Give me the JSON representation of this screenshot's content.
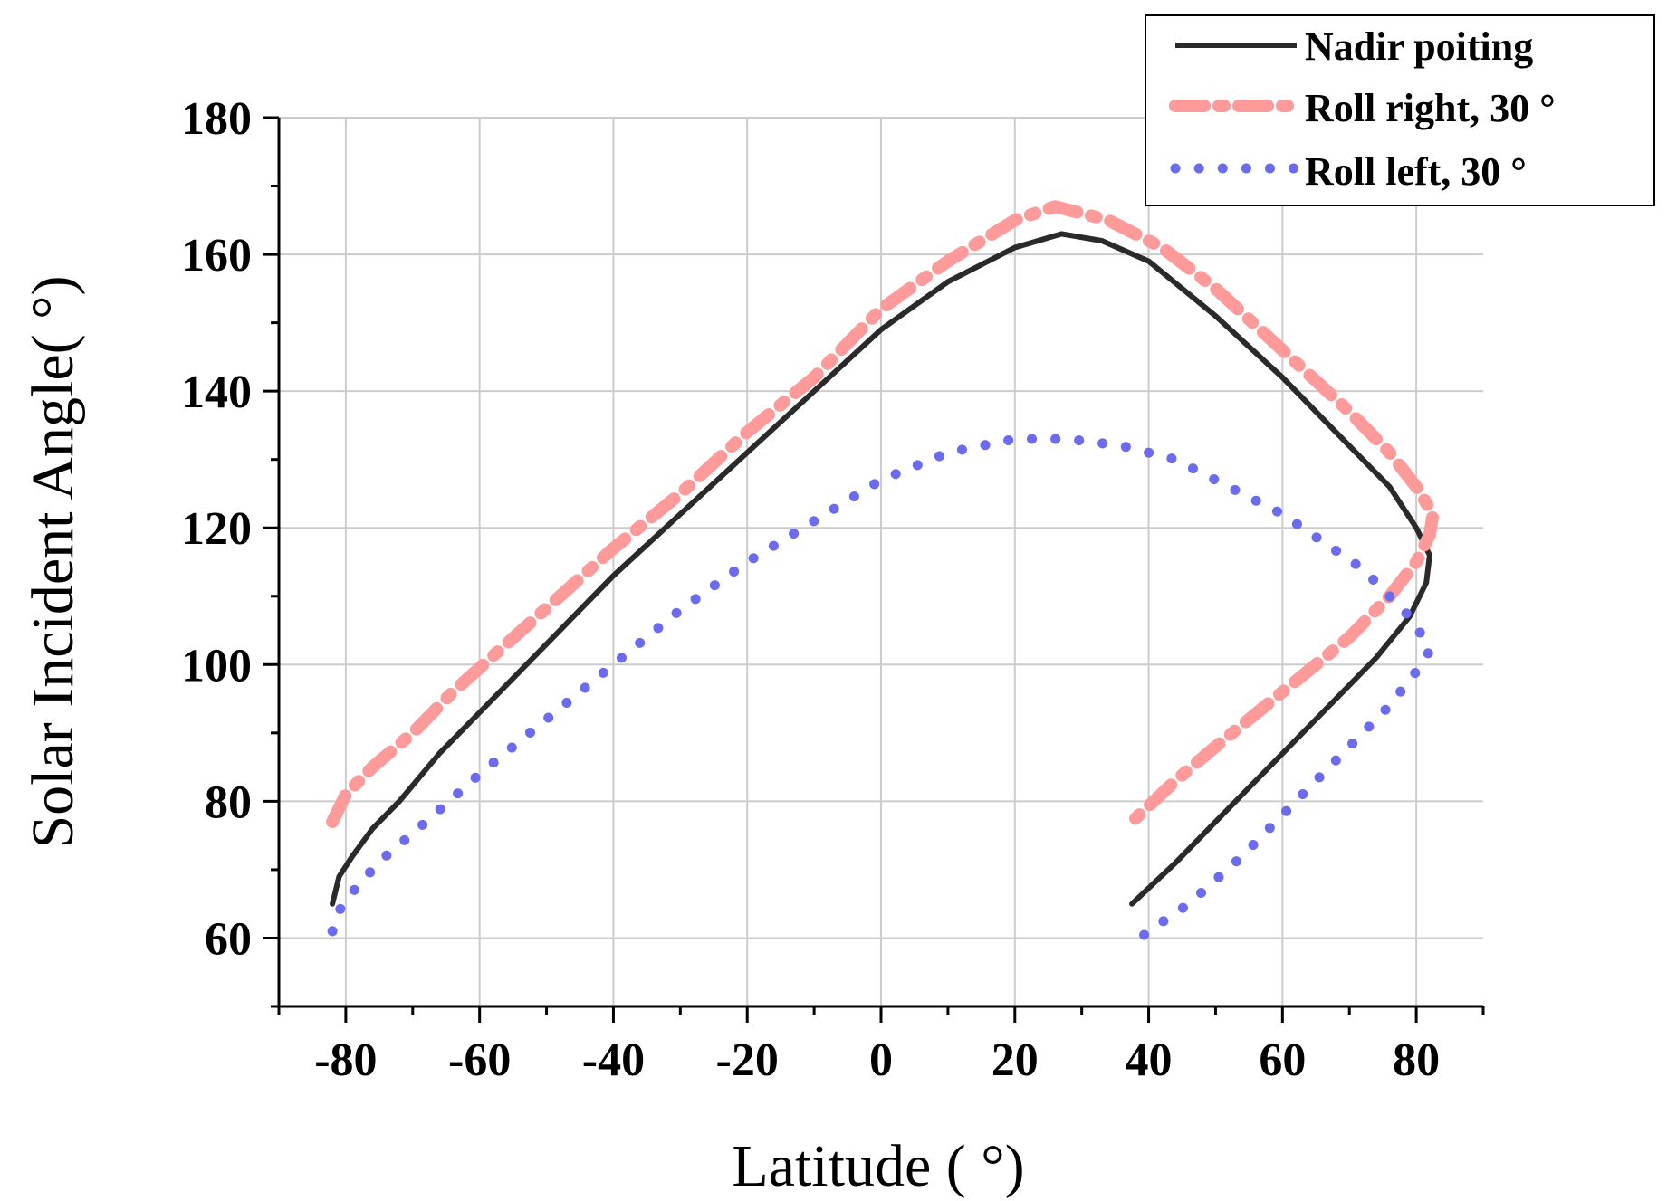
{
  "chart_data": {
    "type": "line",
    "title": "",
    "xlabel": "Latitude (  °)",
    "ylabel": "Solar Incident Angle(  °)",
    "xlim": [
      -90,
      90
    ],
    "ylim": [
      50,
      180
    ],
    "xticks": [
      -80,
      -60,
      -40,
      -20,
      0,
      20,
      40,
      60,
      80
    ],
    "yticks": [
      60,
      80,
      100,
      120,
      140,
      160,
      180
    ],
    "xtick_labels": [
      "-80",
      "-60",
      "-40",
      "-20",
      "0",
      "20",
      "40",
      "60",
      "80"
    ],
    "ytick_labels": [
      "60",
      "80",
      "100",
      "120",
      "140",
      "160",
      "180"
    ],
    "grid": true,
    "legend_position": "top-right",
    "series": [
      {
        "name": "Nadir poiting",
        "color": "#2a2a2a",
        "style": "solid",
        "points": [
          [
            -82,
            65
          ],
          [
            -81,
            69
          ],
          [
            -79,
            72
          ],
          [
            -76,
            76
          ],
          [
            -72,
            80
          ],
          [
            -66,
            87
          ],
          [
            -60,
            93
          ],
          [
            -50,
            103
          ],
          [
            -40,
            113
          ],
          [
            -30,
            122
          ],
          [
            -20,
            131
          ],
          [
            -10,
            140
          ],
          [
            0,
            149
          ],
          [
            10,
            156
          ],
          [
            20,
            161
          ],
          [
            27,
            163
          ],
          [
            33,
            162
          ],
          [
            40,
            159
          ],
          [
            50,
            151
          ],
          [
            60,
            142
          ],
          [
            70,
            132
          ],
          [
            76,
            126
          ],
          [
            80,
            120
          ],
          [
            82,
            116
          ],
          [
            81.5,
            112
          ],
          [
            79,
            107
          ],
          [
            74,
            101
          ],
          [
            66,
            93
          ],
          [
            58,
            85
          ],
          [
            50,
            77
          ],
          [
            44,
            71
          ],
          [
            37.5,
            65
          ]
        ]
      },
      {
        "name": "Roll right, 30  °",
        "color": "#ff9a9a",
        "style": "dashdot",
        "points": [
          [
            -82,
            77
          ],
          [
            -80,
            81
          ],
          [
            -76,
            85
          ],
          [
            -70,
            90
          ],
          [
            -64,
            96
          ],
          [
            -56,
            103
          ],
          [
            -48,
            110
          ],
          [
            -40,
            117
          ],
          [
            -30,
            125
          ],
          [
            -20,
            134
          ],
          [
            -10,
            142
          ],
          [
            0,
            152
          ],
          [
            10,
            159
          ],
          [
            20,
            165
          ],
          [
            26,
            167
          ],
          [
            34,
            165
          ],
          [
            42,
            161
          ],
          [
            50,
            155
          ],
          [
            60,
            146
          ],
          [
            70,
            137
          ],
          [
            76,
            131
          ],
          [
            80,
            126
          ],
          [
            82.5,
            122
          ],
          [
            82,
            119
          ],
          [
            80,
            115
          ],
          [
            76,
            110
          ],
          [
            70,
            104
          ],
          [
            60,
            96
          ],
          [
            50,
            88
          ],
          [
            44,
            83
          ],
          [
            37.5,
            77
          ]
        ]
      },
      {
        "name": "Roll left,  30  °",
        "color": "#6b6bf0",
        "style": "dotted",
        "points": [
          [
            -82,
            61
          ],
          [
            -81,
            64
          ],
          [
            -78,
            68
          ],
          [
            -74,
            72
          ],
          [
            -68,
            77
          ],
          [
            -60,
            84
          ],
          [
            -50,
            92
          ],
          [
            -40,
            100
          ],
          [
            -30,
            108
          ],
          [
            -20,
            115
          ],
          [
            -10,
            121
          ],
          [
            0,
            127
          ],
          [
            10,
            131
          ],
          [
            20,
            133
          ],
          [
            28,
            133
          ],
          [
            36,
            132
          ],
          [
            44,
            130
          ],
          [
            52,
            126
          ],
          [
            60,
            122
          ],
          [
            66,
            118
          ],
          [
            72,
            114
          ],
          [
            76,
            110
          ],
          [
            79,
            107
          ],
          [
            81,
            104
          ],
          [
            82,
            102
          ],
          [
            80,
            99
          ],
          [
            76,
            94
          ],
          [
            70,
            88
          ],
          [
            62,
            80
          ],
          [
            54,
            72
          ],
          [
            46,
            65
          ],
          [
            40,
            61
          ],
          [
            37.5,
            59
          ]
        ]
      }
    ]
  }
}
